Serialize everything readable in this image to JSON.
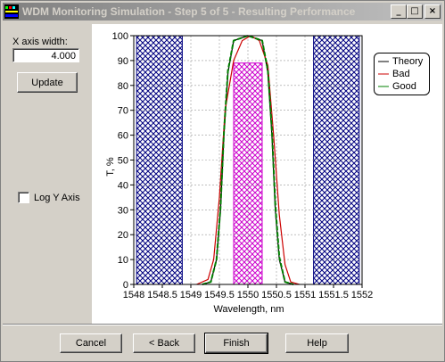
{
  "window": {
    "title": "WDM Monitoring Simulation - Step 5 of 5 - Resulting Performance",
    "minimize_glyph": "_",
    "maximize_glyph": "□",
    "close_glyph": "×"
  },
  "left": {
    "x_axis_label": "X axis width:",
    "x_axis_value": "4.000",
    "update_label": "Update",
    "log_y_label": "Log Y Axis",
    "log_y_checked": false
  },
  "footer": {
    "cancel_label": "Cancel",
    "back_label": "< Back",
    "finish_label": "Finish",
    "help_label": "Help"
  },
  "colors": {
    "theory": "#000000",
    "bad": "#cc0000",
    "good": "#008000",
    "blocked_hatch": "#00007f",
    "pass_hatch": "#cc00cc"
  },
  "chart_data": {
    "type": "line",
    "xlabel": "Wavelength, nm",
    "ylabel": "T, %",
    "xlim": [
      1548,
      1552
    ],
    "ylim": [
      0,
      100
    ],
    "x_ticks": [
      "1548",
      "1548.5",
      "1549",
      "1549.5",
      "1550",
      "1550.5",
      "1551",
      "1551.5",
      "1552"
    ],
    "y_ticks": [
      "0",
      "10",
      "20",
      "30",
      "40",
      "50",
      "60",
      "70",
      "80",
      "90",
      "100"
    ],
    "grid": true,
    "legend_position": "top-right",
    "shaded_regions": [
      {
        "kind": "blocked",
        "x": [
          1548.05,
          1548.85
        ],
        "y": [
          0,
          100
        ]
      },
      {
        "kind": "blocked",
        "x": [
          1551.15,
          1551.95
        ],
        "y": [
          0,
          100
        ]
      },
      {
        "kind": "passband",
        "x": [
          1549.75,
          1550.25
        ],
        "y": [
          0,
          89
        ]
      }
    ],
    "series": [
      {
        "name": "Theory",
        "x": [
          1549.2,
          1549.35,
          1549.45,
          1549.52,
          1549.58,
          1549.65,
          1549.75,
          1550.0,
          1550.25,
          1550.35,
          1550.42,
          1550.48,
          1550.55,
          1550.65,
          1550.8
        ],
        "y": [
          0,
          1,
          10,
          30,
          60,
          85,
          98,
          100,
          98,
          85,
          60,
          30,
          10,
          1,
          0
        ]
      },
      {
        "name": "Bad",
        "x": [
          1549.1,
          1549.3,
          1549.4,
          1549.5,
          1549.6,
          1549.75,
          1549.9,
          1550.05,
          1550.2,
          1550.35,
          1550.45,
          1550.55,
          1550.65,
          1550.75,
          1550.9
        ],
        "y": [
          0,
          2,
          10,
          35,
          70,
          90,
          98,
          100,
          98,
          88,
          60,
          28,
          8,
          1,
          0
        ]
      },
      {
        "name": "Good",
        "x": [
          1549.2,
          1549.35,
          1549.45,
          1549.52,
          1549.58,
          1549.65,
          1549.75,
          1550.0,
          1550.25,
          1550.35,
          1550.42,
          1550.48,
          1550.55,
          1550.65,
          1550.8
        ],
        "y": [
          0,
          1,
          10,
          31,
          61,
          86,
          98,
          100,
          98,
          86,
          62,
          32,
          11,
          1,
          0
        ]
      }
    ]
  }
}
